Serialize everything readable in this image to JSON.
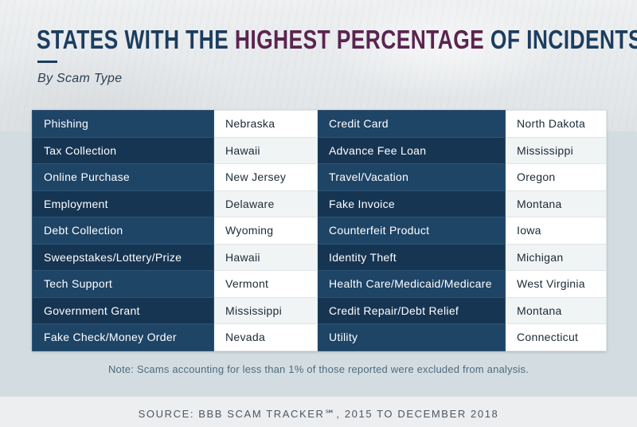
{
  "header": {
    "title_part1": "STATES WITH THE ",
    "title_part2": "HIGHEST PERCENTAGE",
    "title_part3": " OF INCIDENTS",
    "subtitle": "By Scam Type"
  },
  "colors": {
    "title_blue": "#1c3d5f",
    "title_purple": "#5b2450",
    "type_cell": "#1e4466",
    "type_cell_alt": "#163552"
  },
  "rows": [
    {
      "left_type": "Phishing",
      "left_state": "Nebraska",
      "right_type": "Credit Card",
      "right_state": "North Dakota"
    },
    {
      "left_type": "Tax Collection",
      "left_state": "Hawaii",
      "right_type": "Advance Fee Loan",
      "right_state": "Mississippi"
    },
    {
      "left_type": "Online Purchase",
      "left_state": "New Jersey",
      "right_type": "Travel/Vacation",
      "right_state": "Oregon"
    },
    {
      "left_type": "Employment",
      "left_state": "Delaware",
      "right_type": "Fake Invoice",
      "right_state": "Montana"
    },
    {
      "left_type": "Debt Collection",
      "left_state": "Wyoming",
      "right_type": "Counterfeit Product",
      "right_state": "Iowa"
    },
    {
      "left_type": "Sweepstakes/Lottery/Prize",
      "left_state": "Hawaii",
      "right_type": "Identity Theft",
      "right_state": "Michigan"
    },
    {
      "left_type": "Tech Support",
      "left_state": "Vermont",
      "right_type": "Health Care/Medicaid/Medicare",
      "right_state": "West Virginia"
    },
    {
      "left_type": "Government Grant",
      "left_state": "Mississippi",
      "right_type": "Credit Repair/Debt Relief",
      "right_state": "Montana"
    },
    {
      "left_type": "Fake Check/Money Order",
      "left_state": "Nevada",
      "right_type": "Utility",
      "right_state": "Connecticut"
    }
  ],
  "note": "Note: Scams accounting for less than 1% of those reported were excluded from analysis.",
  "source": "SOURCE: BBB SCAM TRACKER℠, 2015 TO DECEMBER 2018"
}
